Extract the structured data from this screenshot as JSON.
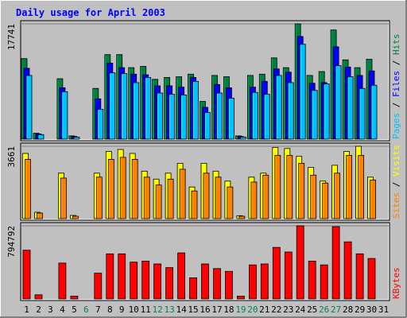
{
  "chart_data": {
    "type": "bar",
    "title": "Daily usage for April 2003",
    "categories": [
      "1",
      "2",
      "3",
      "4",
      "5",
      "6",
      "7",
      "8",
      "9",
      "10",
      "11",
      "12",
      "13",
      "14",
      "15",
      "16",
      "17",
      "18",
      "19",
      "20",
      "21",
      "22",
      "23",
      "24",
      "25",
      "26",
      "27",
      "28",
      "29",
      "30",
      "31"
    ],
    "weekend_days": [
      6,
      12,
      13,
      19,
      20,
      26,
      27
    ],
    "panels": [
      {
        "id": "hits-panel",
        "max_label": "17741",
        "ylim": [
          0,
          17741
        ],
        "legend": [
          "Pages",
          "Files",
          "Hits"
        ],
        "series": [
          {
            "name": "Hits",
            "color": "#008040",
            "values": [
              12400,
              900,
              0,
              9300,
              500,
              0,
              7800,
              13000,
              13000,
              11000,
              11200,
              9200,
              9500,
              9600,
              10000,
              5800,
              9800,
              9600,
              500,
              9800,
              10000,
              12500,
              11000,
              17741,
              9800,
              10400,
              16800,
              12200,
              11000,
              12300,
              0
            ]
          },
          {
            "name": "Files",
            "color": "#0000ff",
            "values": [
              10900,
              800,
              0,
              7900,
              400,
              0,
              6200,
              11700,
              11000,
              10000,
              9900,
              8200,
              8200,
              8000,
              9500,
              4900,
              8400,
              7900,
              400,
              8000,
              8900,
              10800,
              10300,
              15800,
              8600,
              8700,
              14200,
              11100,
              9800,
              10500,
              0
            ]
          },
          {
            "name": "Pages",
            "color": "#00c0ff",
            "values": [
              9800,
              700,
              0,
              7300,
              300,
              0,
              4600,
              10200,
              10100,
              8700,
              9500,
              7100,
              6900,
              6800,
              8900,
              4100,
              7100,
              6300,
              300,
              7200,
              6900,
              9800,
              8700,
              14600,
              7500,
              8500,
              11300,
              9600,
              7800,
              8300,
              0
            ]
          }
        ]
      },
      {
        "id": "visits-panel",
        "max_label": "3661",
        "ylim": [
          0,
          3661
        ],
        "legend": [
          "Sites",
          "Visits"
        ],
        "series": [
          {
            "name": "Visits",
            "color": "#ffff00",
            "values": [
              3300,
              320,
              0,
              2300,
              160,
              0,
              2300,
              3400,
              3500,
              3300,
              2400,
              2000,
              2300,
              2800,
              1600,
              2800,
              2400,
              1900,
              150,
              2100,
              2300,
              3600,
              3550,
              3150,
              2600,
              1900,
              2700,
              3400,
              3661,
              2100,
              0
            ]
          },
          {
            "name": "Sites",
            "color": "#ff8000",
            "values": [
              3000,
              280,
              0,
              2050,
              120,
              0,
              2100,
              3000,
              3100,
              3000,
              2100,
              1700,
              2000,
              2500,
              1400,
              2300,
              2100,
              1600,
              120,
              1850,
              2200,
              3200,
              3200,
              2800,
              2200,
              1800,
              2300,
              3200,
              3200,
              1950,
              0
            ]
          }
        ]
      },
      {
        "id": "kbytes-panel",
        "max_label": "794792",
        "ylim": [
          0,
          794792
        ],
        "legend": [
          "KBytes"
        ],
        "series": [
          {
            "name": "KBytes",
            "color": "#ff0000",
            "values": [
              530000,
              45000,
              0,
              390000,
              30000,
              0,
              280000,
              490000,
              490000,
              400000,
              410000,
              380000,
              340000,
              500000,
              230000,
              380000,
              330000,
              300000,
              30000,
              370000,
              380000,
              560000,
              510000,
              794792,
              410000,
              370000,
              785000,
              620000,
              490000,
              440000,
              0
            ]
          }
        ]
      }
    ]
  }
}
